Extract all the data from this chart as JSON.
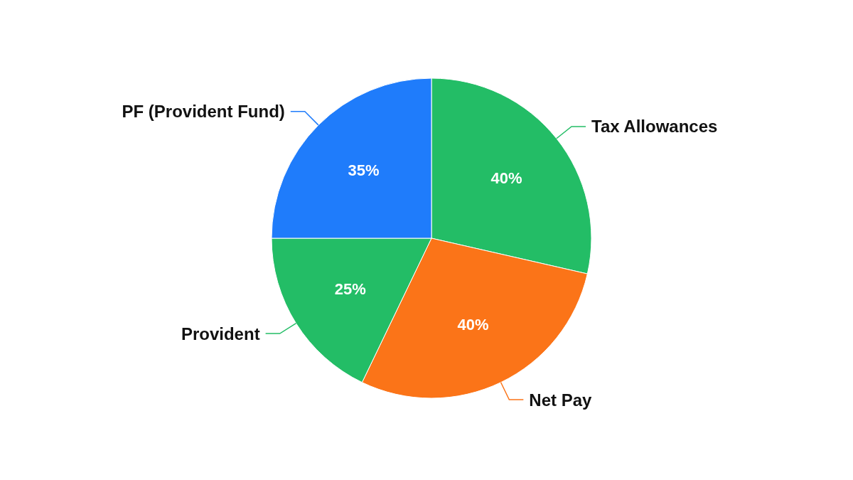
{
  "chart_data": {
    "type": "pie",
    "categories": [
      "Tax Allowances",
      "Net Pay",
      "Provident",
      "PF (Provident Fund)"
    ],
    "values": [
      40,
      40,
      25,
      35
    ],
    "value_labels": [
      "40%",
      "40%",
      "25%",
      "35%"
    ],
    "colors": [
      "#23bd66",
      "#fb7418",
      "#23bd66",
      "#1f7cfb"
    ]
  }
}
